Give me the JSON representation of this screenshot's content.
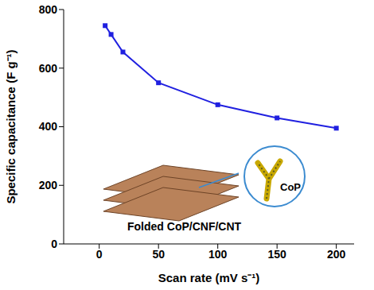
{
  "chart_data": {
    "type": "line",
    "x_label": "Scan rate (mV s⁻¹)",
    "y_label": "Specific capacitance (F g⁻¹)",
    "x": [
      5,
      10,
      20,
      50,
      100,
      150,
      200
    ],
    "values": [
      745,
      715,
      655,
      550,
      475,
      430,
      395
    ],
    "color": "#2020e0",
    "marker": "square",
    "xlim": [
      -30,
      215
    ],
    "xticks": [
      0,
      50,
      100,
      150,
      200
    ],
    "ylim": [
      0,
      800
    ],
    "yticks": [
      0,
      200,
      400,
      600,
      800
    ],
    "grid": false,
    "annotations": [
      "Folded CoP/CNF/CNT",
      "CoP"
    ]
  }
}
